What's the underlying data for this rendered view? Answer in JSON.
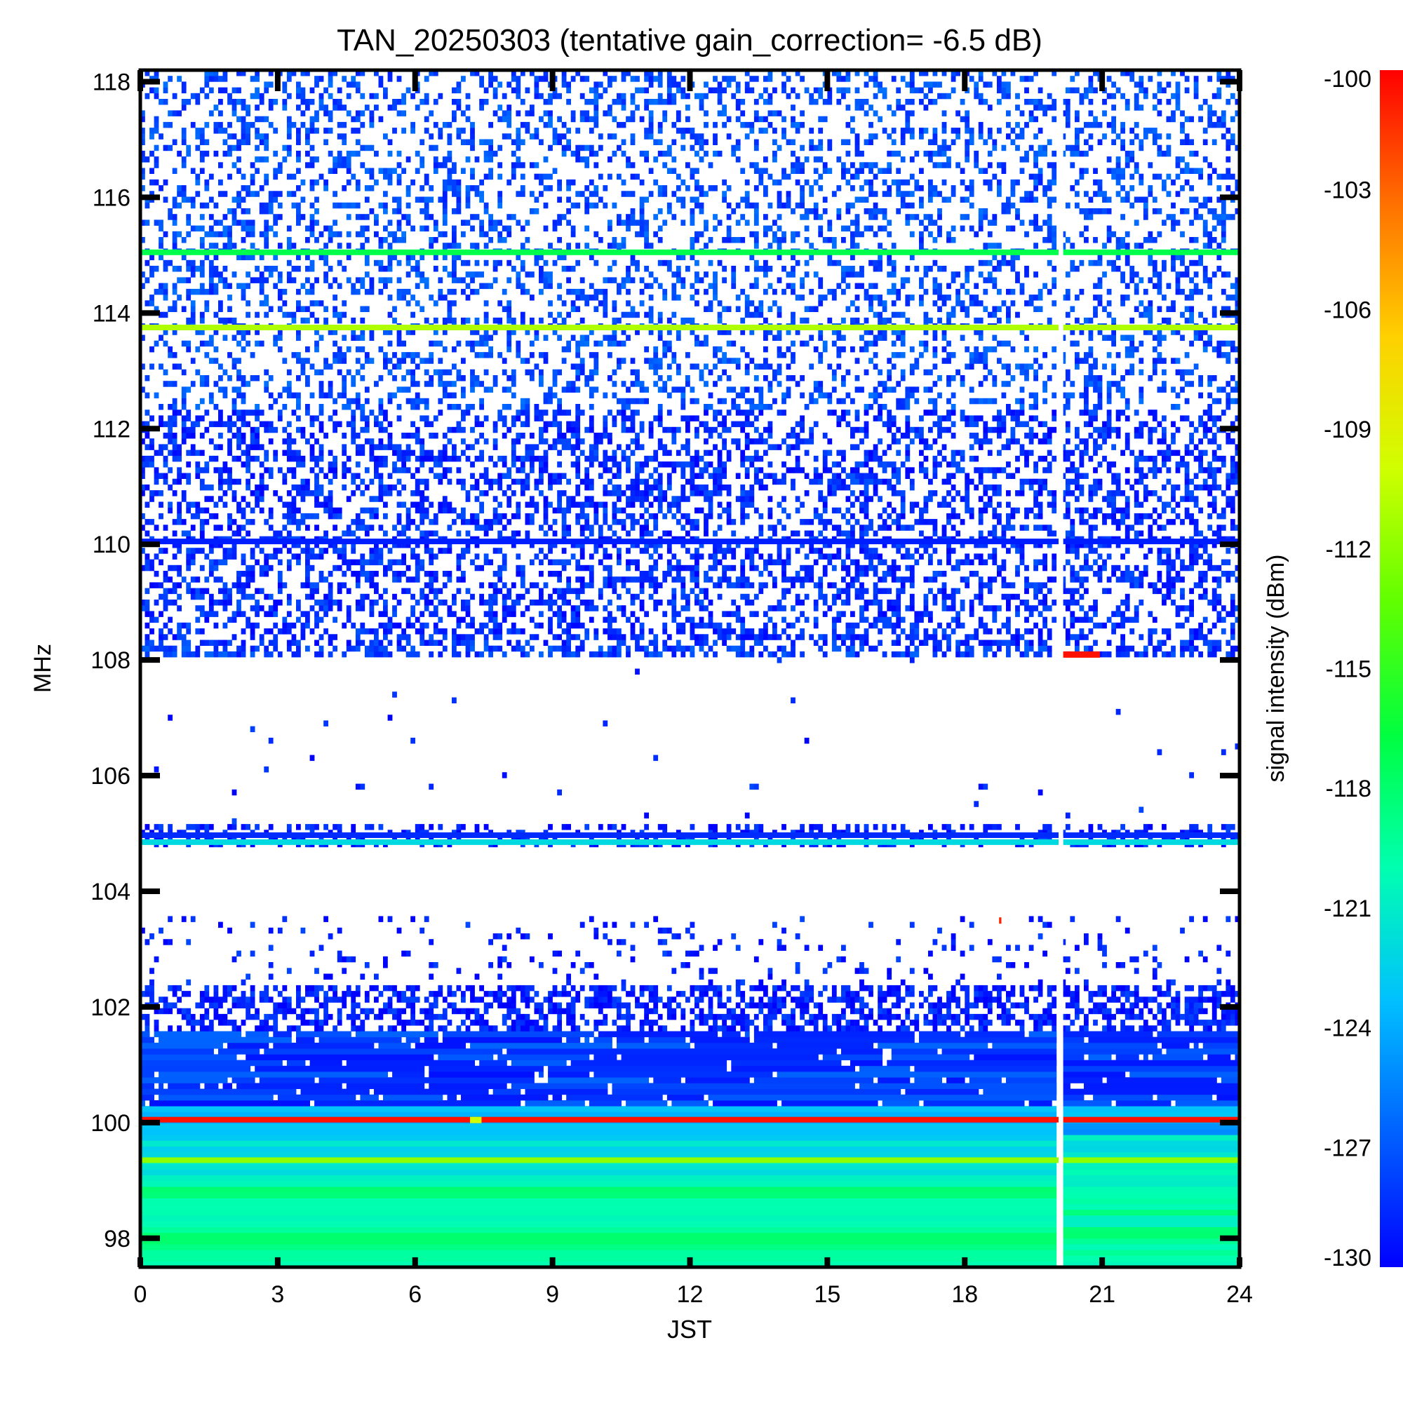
{
  "chart_data": {
    "type": "heatmap",
    "title": "TAN_20250303 (tentative gain_correction= -6.5 dB)",
    "xlabel": "JST",
    "ylabel": "MHz",
    "colorbar_label": "signal intensity (dBm)",
    "xlim": [
      0,
      24
    ],
    "ylim": [
      97.5,
      118.2
    ],
    "x_ticks": [
      0,
      3,
      6,
      9,
      12,
      15,
      18,
      21,
      24
    ],
    "y_ticks": [
      98,
      100,
      102,
      104,
      106,
      108,
      110,
      112,
      114,
      116,
      118
    ],
    "colorbar_range": [
      -130,
      -100
    ],
    "colorbar_ticks": [
      -100,
      -103,
      -106,
      -109,
      -112,
      -115,
      -118,
      -121,
      -124,
      -127,
      -130
    ],
    "colormap": [
      "#0000ff",
      "#0060ff",
      "#00c0ff",
      "#00ffb0",
      "#00ff40",
      "#60ff00",
      "#d0ff00",
      "#ffd000",
      "#ff7000",
      "#ff0000"
    ],
    "data_gap_hours": [
      20.05,
      20.15
    ],
    "frequency_bands": [
      {
        "ymin": 97.5,
        "ymax": 99.0,
        "level_dBm": -119.5,
        "density": 1.0
      },
      {
        "ymin": 99.0,
        "ymax": 99.8,
        "level_dBm": -121.5,
        "density": 1.0
      },
      {
        "ymin": 99.8,
        "ymax": 100.3,
        "level_dBm": -124.0,
        "density": 1.0
      },
      {
        "ymin": 100.3,
        "ymax": 101.6,
        "level_dBm": -128.0,
        "density": 0.95
      },
      {
        "ymin": 101.6,
        "ymax": 102.4,
        "level_dBm": -129.0,
        "density": 0.55
      },
      {
        "ymin": 102.4,
        "ymax": 103.6,
        "level_dBm": -129.0,
        "density": 0.08
      },
      {
        "ymin": 103.6,
        "ymax": 104.8,
        "level_dBm": -129.0,
        "density": 0.0
      },
      {
        "ymin": 104.8,
        "ymax": 105.2,
        "level_dBm": -129.0,
        "density": 0.35
      },
      {
        "ymin": 105.2,
        "ymax": 108.0,
        "level_dBm": -129.0,
        "density": 0.005
      },
      {
        "ymin": 108.0,
        "ymax": 108.2,
        "level_dBm": -128.0,
        "density": 0.5
      },
      {
        "ymin": 108.2,
        "ymax": 112.3,
        "level_dBm": -128.5,
        "density": 0.42
      },
      {
        "ymin": 112.3,
        "ymax": 118.2,
        "level_dBm": -127.5,
        "density": 0.3
      }
    ],
    "persistent_signals": [
      {
        "freq_MHz": 100.05,
        "level_dBm": -100.5
      },
      {
        "freq_MHz": 99.35,
        "level_dBm": -112.0
      },
      {
        "freq_MHz": 104.97,
        "level_dBm": -128.5
      },
      {
        "freq_MHz": 104.85,
        "level_dBm": -122.0
      },
      {
        "freq_MHz": 110.05,
        "level_dBm": -129.0
      },
      {
        "freq_MHz": 113.75,
        "level_dBm": -111.0
      },
      {
        "freq_MHz": 115.05,
        "level_dBm": -117.0
      }
    ],
    "transient_events": [
      {
        "t_start": 20.1,
        "t_end": 20.95,
        "freq_MHz": 108.1,
        "level_dBm": -100.5
      },
      {
        "t_start": 7.2,
        "t_end": 7.45,
        "freq_MHz": 100.05,
        "level_dBm": -110.0
      },
      {
        "t_start": 18.75,
        "t_end": 18.8,
        "freq_MHz": 103.5,
        "level_dBm": -101.0
      }
    ]
  }
}
